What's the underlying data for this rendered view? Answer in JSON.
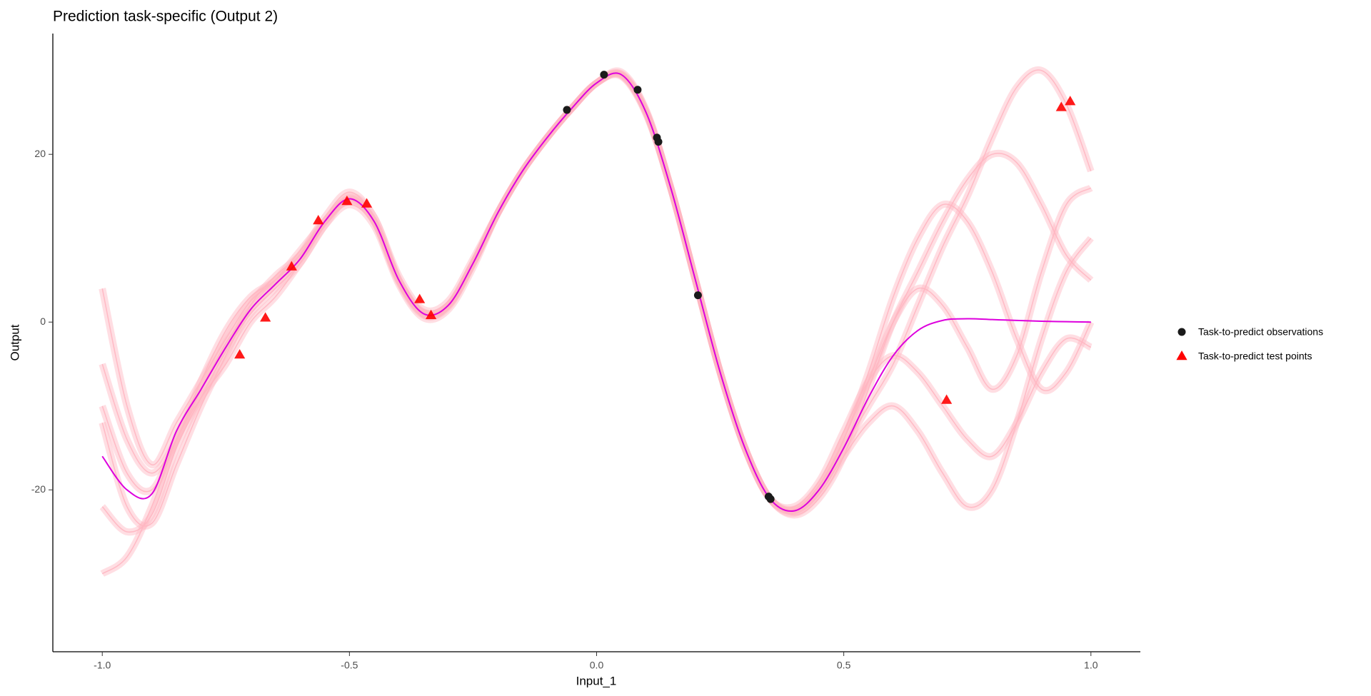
{
  "chart_data": {
    "type": "line",
    "title": "Prediction task-specific (Output 2)",
    "x_label": "Input_1",
    "y_label": "Output",
    "xlim": [
      -1.1,
      1.1
    ],
    "ylim": [
      -39.3,
      34.4
    ],
    "xticks": [
      {
        "value": -1,
        "label": "-1.0"
      },
      {
        "value": -0.5,
        "label": "-0.5"
      },
      {
        "value": 0,
        "label": "0.0"
      },
      0.5,
      {
        "value": 1,
        "label": "1.0"
      }
    ],
    "yticks": [
      -20,
      0,
      20
    ],
    "x": [
      -1,
      -0.95,
      -0.9,
      -0.85,
      -0.8,
      -0.75,
      -0.7,
      -0.65,
      -0.6,
      -0.55,
      -0.5,
      -0.45,
      -0.4,
      -0.35,
      -0.3,
      -0.25,
      -0.2,
      -0.15,
      -0.1,
      -0.05,
      0,
      0.05,
      0.1,
      0.15,
      0.2,
      0.25,
      0.3,
      0.35,
      0.4,
      0.45,
      0.5,
      0.55,
      0.6,
      0.65,
      0.7,
      0.75,
      0.8,
      0.85,
      0.9,
      0.95,
      1
    ],
    "mean": {
      "color": "#dd00dd",
      "values": [
        -16,
        -20,
        -20.5,
        -13,
        -8,
        -3,
        1.5,
        4.5,
        7.5,
        12,
        14.7,
        12,
        5,
        1,
        2,
        7,
        13,
        18,
        22,
        25.5,
        28.5,
        29.5,
        25,
        16,
        5,
        -6,
        -15,
        -21,
        -22.5,
        -20,
        -15,
        -9,
        -4,
        -1,
        0.2,
        0.4,
        0.3,
        0.2,
        0.1,
        0.05,
        0
      ]
    },
    "samples_color": "#ffb6c1",
    "samples": [
      [
        -5,
        -14,
        -18,
        -14,
        -7,
        -1,
        3,
        5,
        8,
        12.5,
        15.5,
        12.5,
        5.5,
        1.5,
        2.5,
        7.5,
        13,
        18,
        22,
        25.5,
        28.5,
        29.8,
        25.3,
        16,
        5,
        -6,
        -15,
        -21,
        -23,
        -21,
        -16,
        -8,
        0,
        6,
        12,
        17,
        20,
        19,
        14,
        8,
        5
      ],
      [
        -30,
        -28,
        -22,
        -14,
        -9,
        -5,
        0,
        3,
        7,
        11.5,
        14,
        11.5,
        4.5,
        0.5,
        1.5,
        6.5,
        13,
        18,
        22,
        25.5,
        28.5,
        29.3,
        24.8,
        16,
        5,
        -6,
        -15,
        -21,
        -22,
        -19,
        -13,
        -7,
        -4,
        -6,
        -10,
        -14,
        -16,
        -12,
        -6,
        -2,
        -3
      ],
      [
        -12,
        -22,
        -24,
        -17,
        -10,
        -4,
        2,
        5.5,
        8,
        12,
        15,
        12.5,
        5,
        1,
        2,
        7,
        13,
        18,
        22,
        25.5,
        28.5,
        29.6,
        25.2,
        16,
        5,
        -6,
        -15,
        -21,
        -22.5,
        -20,
        -14,
        -6,
        3,
        10,
        14,
        12,
        6,
        -2,
        -8,
        -6,
        0
      ],
      [
        4,
        -10,
        -17,
        -12,
        -7,
        -2,
        2.5,
        5,
        8.5,
        12,
        14.5,
        12,
        5,
        1.2,
        2,
        7,
        13,
        18,
        22,
        25.5,
        28.5,
        29.4,
        25,
        16,
        5,
        -6,
        -15,
        -21,
        -22.8,
        -20.5,
        -16,
        -12,
        -10,
        -13,
        -18,
        -22,
        -20,
        -12,
        -2,
        6,
        10
      ],
      [
        -22,
        -25,
        -23,
        -15,
        -9,
        -3.5,
        1,
        4,
        7,
        11.5,
        14.8,
        12,
        4.8,
        0.8,
        1.8,
        7,
        13,
        18,
        22,
        25.5,
        28.5,
        29.5,
        25,
        16,
        5,
        -6,
        -15,
        -21,
        -22.3,
        -19.5,
        -14,
        -7,
        0,
        4,
        2,
        -3,
        -8,
        -4,
        6,
        14,
        16
      ],
      [
        -10,
        -18,
        -20,
        -14,
        -8,
        -2.5,
        1.5,
        4.5,
        7.5,
        12,
        14.6,
        12,
        5,
        1,
        2,
        7,
        13,
        18,
        22,
        25.5,
        28.5,
        29.5,
        25,
        16,
        5,
        -6,
        -15,
        -21,
        -22.5,
        -20,
        -15,
        -10,
        -5,
        2,
        9,
        15,
        22,
        28,
        30,
        26,
        18
      ]
    ],
    "observations": {
      "name": "Task-to-predict observations",
      "color": "#1a1a1a",
      "x": [
        -0.06,
        0.015,
        0.083,
        0.122,
        0.125,
        0.205,
        0.348,
        0.352
      ],
      "values": [
        25.3,
        29.5,
        27.7,
        22,
        21.5,
        3.2,
        -20.8,
        -21.1
      ]
    },
    "test_points": {
      "name": "Task-to-predict test points",
      "color": "#ff0000",
      "x": [
        -0.722,
        -0.67,
        -0.617,
        -0.563,
        -0.505,
        -0.465,
        -0.358,
        -0.335,
        0.708,
        0.94,
        0.958
      ],
      "values": [
        -3.9,
        0.5,
        6.6,
        12.1,
        14.4,
        14.1,
        2.7,
        0.8,
        -9.3,
        25.6,
        26.3
      ]
    }
  }
}
